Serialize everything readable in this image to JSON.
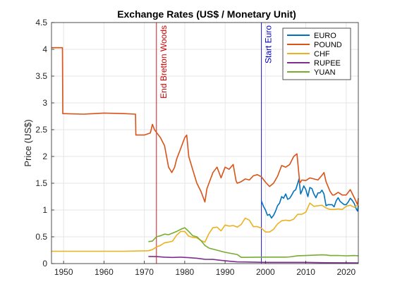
{
  "chart_data": {
    "type": "line",
    "title": "Exchange Rates (US$ / Monetary Unit)",
    "xlabel": "",
    "ylabel": "Price (US$)",
    "xlim": [
      1947,
      2023
    ],
    "ylim": [
      0,
      4.5
    ],
    "x_ticks": [
      1950,
      1960,
      1970,
      1980,
      1990,
      2000,
      2010,
      2020
    ],
    "y_ticks": [
      0,
      0.5,
      1,
      1.5,
      2,
      2.5,
      3,
      3.5,
      4,
      4.5
    ],
    "grid": true,
    "legend_position": "top-right",
    "vertical_lines": [
      {
        "x": 1973,
        "label": "End Bretton Woods",
        "color": "#cc0000"
      },
      {
        "x": 1999,
        "label": "Start Euro",
        "color": "#0000cc"
      }
    ],
    "series": [
      {
        "name": "EURO",
        "color": "#0072BD",
        "x": [
          1999,
          1999.5,
          2000,
          2000.5,
          2001,
          2001.5,
          2002,
          2002.5,
          2003,
          2003.5,
          2004,
          2004.5,
          2005,
          2005.5,
          2006,
          2006.5,
          2007,
          2007.5,
          2008,
          2008.3,
          2008.7,
          2009,
          2009.5,
          2010,
          2010.5,
          2011,
          2011.5,
          2012,
          2012.5,
          2013,
          2013.5,
          2014,
          2014.5,
          2015,
          2015.5,
          2016,
          2016.5,
          2017,
          2017.5,
          2018,
          2018.5,
          2019,
          2019.5,
          2020,
          2020.5,
          2021,
          2021.5,
          2022,
          2022.5,
          2022.8,
          2023
        ],
        "y": [
          1.17,
          1.07,
          1.0,
          0.9,
          0.92,
          0.85,
          0.9,
          0.98,
          1.08,
          1.13,
          1.25,
          1.22,
          1.3,
          1.2,
          1.22,
          1.28,
          1.35,
          1.38,
          1.5,
          1.58,
          1.3,
          1.35,
          1.45,
          1.38,
          1.25,
          1.42,
          1.4,
          1.3,
          1.23,
          1.32,
          1.32,
          1.37,
          1.3,
          1.08,
          1.1,
          1.1,
          1.1,
          1.06,
          1.17,
          1.23,
          1.16,
          1.13,
          1.1,
          1.1,
          1.15,
          1.22,
          1.18,
          1.12,
          1.02,
          0.98,
          1.08
        ]
      },
      {
        "name": "POUND",
        "color": "#D95319",
        "x": [
          1947,
          1949.7,
          1949.8,
          1955,
          1960,
          1965,
          1967.8,
          1967.9,
          1970,
          1971.5,
          1972,
          1972.5,
          1973,
          1974,
          1975,
          1976,
          1976.8,
          1977.5,
          1978,
          1979,
          1980,
          1980.5,
          1981,
          1982,
          1983,
          1984,
          1985,
          1985.5,
          1986,
          1987,
          1988,
          1989,
          1990,
          1991,
          1992,
          1992.7,
          1993,
          1994,
          1995,
          1996,
          1997,
          1998,
          1999,
          2000,
          2001,
          2002,
          2003,
          2004,
          2005,
          2006,
          2007,
          2007.8,
          2008.5,
          2009,
          2010,
          2011,
          2012,
          2013,
          2014,
          2014.5,
          2015,
          2016,
          2016.6,
          2017,
          2018,
          2019,
          2020,
          2021,
          2022,
          2022.8,
          2023
        ],
        "y": [
          4.03,
          4.03,
          2.8,
          2.79,
          2.81,
          2.8,
          2.79,
          2.4,
          2.4,
          2.44,
          2.6,
          2.5,
          2.45,
          2.35,
          2.2,
          1.8,
          1.7,
          1.8,
          1.95,
          2.15,
          2.35,
          2.4,
          2.0,
          1.75,
          1.5,
          1.35,
          1.15,
          1.4,
          1.5,
          1.7,
          1.8,
          1.6,
          1.8,
          1.76,
          1.85,
          1.55,
          1.5,
          1.53,
          1.58,
          1.56,
          1.64,
          1.66,
          1.62,
          1.52,
          1.44,
          1.5,
          1.63,
          1.83,
          1.8,
          1.85,
          2.0,
          2.05,
          1.5,
          1.56,
          1.55,
          1.6,
          1.58,
          1.56,
          1.65,
          1.7,
          1.53,
          1.35,
          1.28,
          1.28,
          1.33,
          1.28,
          1.28,
          1.38,
          1.23,
          1.1,
          1.22
        ]
      },
      {
        "name": "CHF",
        "color": "#EDB120",
        "x": [
          1947,
          1955,
          1965,
          1971,
          1972,
          1973,
          1974,
          1975,
          1976,
          1977,
          1978,
          1979,
          1980,
          1981,
          1982,
          1983,
          1984,
          1985,
          1986,
          1987,
          1988,
          1989,
          1990,
          1991,
          1992,
          1993,
          1994,
          1995,
          1996,
          1997,
          1998,
          1999,
          2000,
          2001,
          2002,
          2003,
          2004,
          2005,
          2006,
          2007,
          2008,
          2009,
          2010,
          2011,
          2012,
          2013,
          2014,
          2015,
          2016,
          2017,
          2018,
          2019,
          2020,
          2021,
          2022,
          2023
        ],
        "y": [
          0.23,
          0.23,
          0.23,
          0.24,
          0.26,
          0.31,
          0.34,
          0.39,
          0.4,
          0.42,
          0.53,
          0.6,
          0.6,
          0.51,
          0.49,
          0.48,
          0.43,
          0.4,
          0.56,
          0.67,
          0.68,
          0.61,
          0.72,
          0.7,
          0.71,
          0.68,
          0.73,
          0.85,
          0.81,
          0.69,
          0.69,
          0.66,
          0.59,
          0.59,
          0.64,
          0.74,
          0.8,
          0.81,
          0.8,
          0.83,
          0.92,
          0.92,
          0.96,
          1.13,
          1.07,
          1.08,
          1.09,
          1.04,
          1.01,
          1.01,
          1.02,
          1.01,
          1.07,
          1.09,
          1.05,
          1.1
        ]
      },
      {
        "name": "RUPEE",
        "color": "#7E2F8E",
        "x": [
          1971,
          1973,
          1975,
          1977,
          1979,
          1981,
          1983,
          1985,
          1987,
          1989,
          1991,
          1993,
          1995,
          2000,
          2005,
          2010,
          2015,
          2020,
          2023
        ],
        "y": [
          0.133,
          0.13,
          0.12,
          0.115,
          0.12,
          0.11,
          0.1,
          0.08,
          0.077,
          0.06,
          0.045,
          0.032,
          0.03,
          0.022,
          0.023,
          0.022,
          0.016,
          0.014,
          0.012
        ]
      },
      {
        "name": "YUAN",
        "color": "#77AC30",
        "x": [
          1971,
          1972,
          1973,
          1974,
          1975,
          1976,
          1977,
          1978,
          1979,
          1980,
          1981,
          1982,
          1983,
          1984,
          1985,
          1986,
          1987,
          1990,
          1993,
          1994,
          2000,
          2005,
          2006,
          2008,
          2010,
          2014,
          2015,
          2016,
          2018,
          2020,
          2022,
          2023
        ],
        "y": [
          0.41,
          0.42,
          0.5,
          0.52,
          0.55,
          0.54,
          0.57,
          0.6,
          0.64,
          0.67,
          0.6,
          0.52,
          0.5,
          0.43,
          0.34,
          0.29,
          0.27,
          0.21,
          0.17,
          0.116,
          0.121,
          0.121,
          0.125,
          0.146,
          0.15,
          0.163,
          0.16,
          0.15,
          0.151,
          0.145,
          0.15,
          0.145
        ]
      }
    ]
  }
}
